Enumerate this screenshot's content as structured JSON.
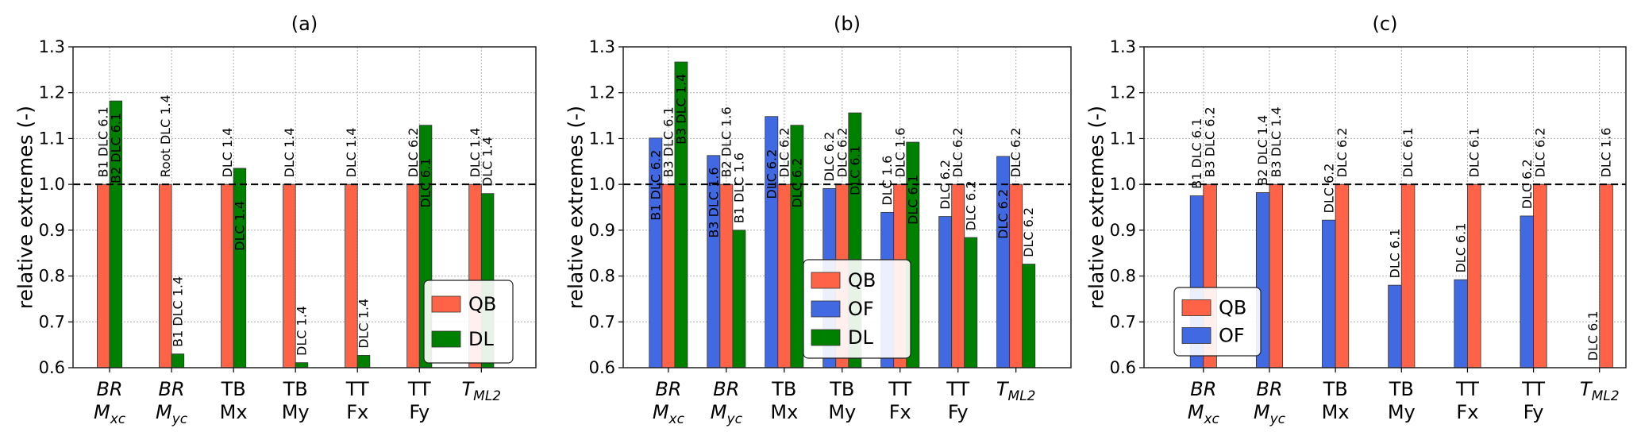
{
  "chart_data": [
    {
      "type": "bar",
      "title": "(a)",
      "ylabel": "relative extremes (-)",
      "xlabel": "",
      "ylim": [
        0.6,
        1.3
      ],
      "yticks": [
        "0.6",
        "0.7",
        "0.8",
        "0.9",
        "1.0",
        "1.1",
        "1.2",
        "1.3"
      ],
      "xlim": [
        -0.59,
        6.88
      ],
      "grid": true,
      "reference_line": {
        "y": 1.0,
        "style": "dashed",
        "color": "#000000"
      },
      "categories": [
        {
          "top": "BR",
          "base": "M",
          "sub": "xc",
          "italic": true
        },
        {
          "top": "BR",
          "base": "M",
          "sub": "yc",
          "italic": true
        },
        {
          "top": "TB",
          "base": "Mx",
          "sub": "",
          "italic": false
        },
        {
          "top": "TB",
          "base": "My",
          "sub": "",
          "italic": false
        },
        {
          "top": "TT",
          "base": "Fx",
          "sub": "",
          "italic": false
        },
        {
          "top": "TT",
          "base": "Fy",
          "sub": "",
          "italic": false
        },
        {
          "top": "",
          "base": "T",
          "sub": "ML2",
          "italic": true
        }
      ],
      "series": [
        {
          "name": "QB",
          "color": "#ff6347",
          "values": [
            1,
            1,
            1,
            1,
            1,
            1,
            1
          ],
          "labels": [
            "B1 DLC 6.1",
            "Root DLC 1.4",
            "DLC 1.4",
            "DLC 1.4",
            "DLC 1.4",
            "DLC 6.2",
            "DLC 1.4"
          ]
        },
        {
          "name": "DL",
          "color": "#008000",
          "values": [
            1.182,
            0.63,
            1.035,
            0.611,
            0.627,
            1.129,
            0.98
          ],
          "labels": [
            "B2 DLC 6.1",
            "B1 DLC 1.4",
            "DLC 1.4",
            "DLC 1.4",
            "DLC 1.4",
            "DLC 6.1",
            "DLC 1.4"
          ]
        }
      ],
      "legend": {
        "placement": "lower right",
        "order": [
          "QB",
          "DL"
        ]
      }
    },
    {
      "type": "bar",
      "title": "(b)",
      "ylabel": "relative extremes (-)",
      "xlabel": "",
      "ylim": [
        0.6,
        1.3
      ],
      "yticks": [
        "0.6",
        "0.7",
        "0.8",
        "0.9",
        "1.0",
        "1.1",
        "1.2",
        "1.3"
      ],
      "xlim": [
        -0.78,
        6.95
      ],
      "grid": true,
      "reference_line": {
        "y": 1.0,
        "style": "dashed",
        "color": "#000000"
      },
      "categories": [
        {
          "top": "BR",
          "base": "M",
          "sub": "xc",
          "italic": true
        },
        {
          "top": "BR",
          "base": "M",
          "sub": "yc",
          "italic": true
        },
        {
          "top": "TB",
          "base": "Mx",
          "sub": "",
          "italic": false
        },
        {
          "top": "TB",
          "base": "My",
          "sub": "",
          "italic": false
        },
        {
          "top": "TT",
          "base": "Fx",
          "sub": "",
          "italic": false
        },
        {
          "top": "TT",
          "base": "Fy",
          "sub": "",
          "italic": false
        },
        {
          "top": "",
          "base": "T",
          "sub": "ML2",
          "italic": true
        }
      ],
      "series": [
        {
          "name": "OF",
          "color": "#4169e1",
          "values": [
            1.101,
            1.063,
            1.148,
            0.991,
            0.939,
            0.93,
            1.061
          ],
          "labels": [
            "B1 DLC 6.2",
            "B3 DLC 1.6",
            "DLC 6.2",
            "DLC 6.2",
            "DLC 1.6",
            "DLC 6.2",
            "DLC 6.2"
          ]
        },
        {
          "name": "QB",
          "color": "#ff6347",
          "values": [
            1,
            1,
            1,
            1,
            1,
            1,
            1
          ],
          "labels": [
            "B3 DLC 6.1",
            "B2 DLC 1.6",
            "DLC 6.2",
            "DLC 6.2",
            "DLC 1.6",
            "DLC 6.2",
            "DLC 6.2"
          ]
        },
        {
          "name": "DL",
          "color": "#008000",
          "values": [
            1.267,
            0.9,
            1.129,
            1.156,
            1.092,
            0.884,
            0.826
          ],
          "labels": [
            "B3 DLC 1.4",
            "B1 DLC 1.6",
            "DLC 6.2",
            "DLC 6.1",
            "DLC 6.1",
            "DLC 6.2",
            "DLC 6.2"
          ]
        }
      ],
      "legend": {
        "placement": "lower center",
        "order": [
          "QB",
          "OF",
          "DL"
        ]
      }
    },
    {
      "type": "bar",
      "title": "(c)",
      "ylabel": "relative extremes (-)",
      "xlabel": "",
      "ylim": [
        0.6,
        1.3
      ],
      "yticks": [
        "0.6",
        "0.7",
        "0.8",
        "0.9",
        "1.0",
        "1.1",
        "1.2",
        "1.3"
      ],
      "xlim": [
        -0.9,
        6.4
      ],
      "grid": true,
      "reference_line": {
        "y": 1.0,
        "style": "dashed",
        "color": "#000000"
      },
      "categories": [
        {
          "top": "BR",
          "base": "M",
          "sub": "xc",
          "italic": true
        },
        {
          "top": "BR",
          "base": "M",
          "sub": "yc",
          "italic": true
        },
        {
          "top": "TB",
          "base": "Mx",
          "sub": "",
          "italic": false
        },
        {
          "top": "TB",
          "base": "My",
          "sub": "",
          "italic": false
        },
        {
          "top": "TT",
          "base": "Fx",
          "sub": "",
          "italic": false
        },
        {
          "top": "TT",
          "base": "Fy",
          "sub": "",
          "italic": false
        },
        {
          "top": "",
          "base": "T",
          "sub": "ML2",
          "italic": true
        }
      ],
      "series": [
        {
          "name": "OF",
          "color": "#4169e1",
          "values": [
            0.975,
            0.982,
            0.922,
            0.78,
            0.792,
            0.931,
            0.6
          ],
          "labels": [
            "B1 DLC 6.1",
            "B2 DLC 1.4",
            "DLC 6.2",
            "DLC 6.1",
            "DLC 6.1",
            "DLC 6.2",
            "DLC 6.1"
          ]
        },
        {
          "name": "QB",
          "color": "#ff6347",
          "values": [
            1,
            1,
            1,
            1,
            1,
            1,
            1
          ],
          "labels": [
            "B3 DLC 6.2",
            "B3 DLC 1.4",
            "DLC 6.2",
            "DLC 6.1",
            "DLC 6.1",
            "DLC 6.2",
            "DLC 1.6"
          ]
        }
      ],
      "legend": {
        "placement": "lower left",
        "order": [
          "QB",
          "OF"
        ]
      }
    }
  ]
}
